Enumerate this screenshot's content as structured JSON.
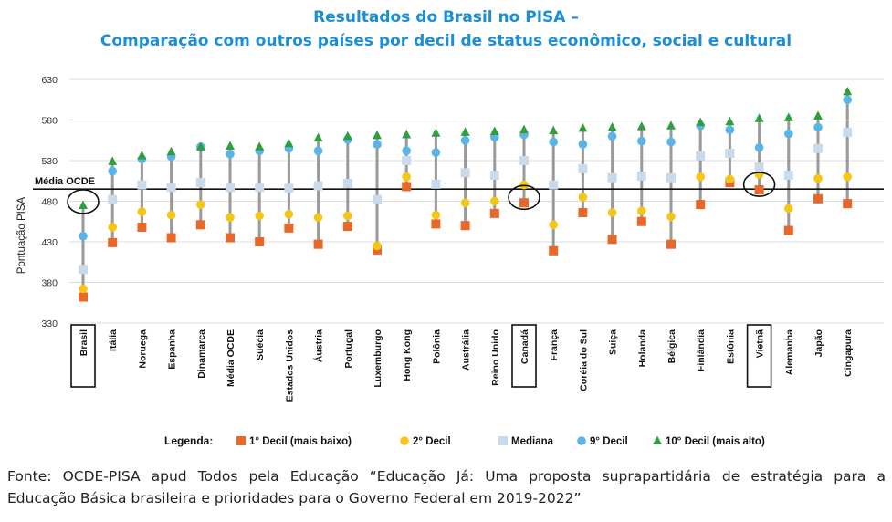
{
  "chart_data": {
    "type": "scatter",
    "title": "Resultados do Brasil no PISA –",
    "subtitle": "Comparação com outros países por decil de status econômico, social e cultural",
    "xlabel": "",
    "ylabel": "Pontuação PISA",
    "ylim": [
      330,
      630
    ],
    "yticks": [
      330,
      380,
      430,
      480,
      530,
      580,
      630
    ],
    "reference_line": {
      "label": "Média OCDE",
      "value": 495
    },
    "legend": {
      "title": "Legenda:",
      "placement": "bottom",
      "entries": [
        "1° Decil (mais baixo)",
        "2° Decil",
        "Mediana",
        "9° Decil",
        "10° Decil (mais alto)"
      ]
    },
    "series_colors": [
      "#e8682a",
      "#f5c518",
      "#c9daea",
      "#5ab4e8",
      "#2e9e3e"
    ],
    "categories": [
      "Brasil",
      "Itália",
      "Noruega",
      "Espanha",
      "Dinamarca",
      "Média OCDE",
      "Suécia",
      "Estados Unidos",
      "Áustria",
      "Portugal",
      "Luxemburgo",
      "Hong Kong",
      "Polônia",
      "Austrália",
      "Reino Unido",
      "Canadá",
      "França",
      "Coréia do Sul",
      "Suiça",
      "Holanda",
      "Bélgica",
      "Finlândia",
      "Estônia",
      "Vietnã",
      "Alemanha",
      "Japão",
      "Cingapura"
    ],
    "highlighted_categories": [
      "Brasil",
      "Canadá",
      "Vietnã"
    ],
    "series": [
      {
        "name": "1° Decil (mais baixo)",
        "values": [
          362,
          429,
          448,
          435,
          451,
          435,
          430,
          447,
          427,
          449,
          420,
          498,
          452,
          450,
          465,
          478,
          419,
          466,
          433,
          455,
          427,
          476,
          503,
          494,
          444,
          483,
          477
        ]
      },
      {
        "name": "2° Decil",
        "values": [
          372,
          448,
          467,
          463,
          476,
          460,
          462,
          464,
          460,
          462,
          425,
          510,
          463,
          478,
          480,
          500,
          451,
          485,
          466,
          468,
          461,
          510,
          507,
          513,
          471,
          508,
          510
        ]
      },
      {
        "name": "Mediana",
        "values": [
          396,
          482,
          500,
          497,
          503,
          497,
          497,
          496,
          499,
          502,
          482,
          530,
          501,
          515,
          512,
          530,
          500,
          520,
          509,
          511,
          509,
          536,
          539,
          522,
          512,
          545,
          565
        ]
      },
      {
        "name": "9° Decil",
        "values": [
          437,
          517,
          532,
          535,
          547,
          538,
          542,
          545,
          542,
          556,
          550,
          542,
          540,
          555,
          559,
          562,
          553,
          550,
          560,
          554,
          553,
          573,
          568,
          546,
          563,
          571,
          605
        ]
      },
      {
        "name": "10° Decil (mais alto)",
        "values": [
          475,
          529,
          536,
          541,
          547,
          548,
          547,
          551,
          558,
          560,
          561,
          562,
          564,
          565,
          566,
          568,
          567,
          570,
          571,
          572,
          573,
          577,
          578,
          582,
          583,
          585,
          615
        ]
      }
    ]
  },
  "source_note": {
    "line1": "Fonte: OCDE-PISA apud Todos pela Educação “Educação Já: Uma proposta suprapartidária de estratégia para a",
    "line2": "Educação Básica brasileira e prioridades para o Governo Federal em 2019-2022”"
  }
}
